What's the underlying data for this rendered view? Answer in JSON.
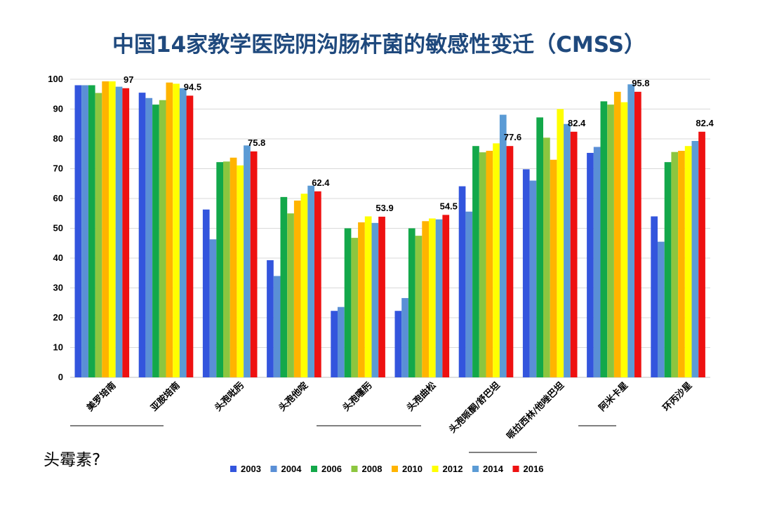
{
  "title": "中国14家教学医院阴沟肠杆菌的敏感性变迁（CMSS）",
  "note": "头霉素?",
  "chart_data": {
    "type": "bar",
    "title": "中国14家教学医院阴沟肠杆菌的敏感性变迁（CMSS）",
    "categories": [
      "美罗培南",
      "亚胺培南",
      "头孢吡肟",
      "头孢他啶",
      "头孢噻肟",
      "头孢曲松",
      "头孢哌酮/舒巴坦",
      "哌拉西林/他唑巴坦",
      "阿米卡星",
      "环丙沙星"
    ],
    "series": [
      {
        "name": "2003",
        "color": "#3355dd",
        "values": [
          98,
          95.5,
          56.3,
          39.3,
          22.3,
          22.3,
          64.1,
          69.8,
          75.3,
          54
        ]
      },
      {
        "name": "2004",
        "color": "#5a8fd6",
        "values": [
          98,
          93.7,
          46.3,
          34,
          23.6,
          26.6,
          55.6,
          66,
          77.3,
          45.5
        ]
      },
      {
        "name": "2006",
        "color": "#13a84a",
        "values": [
          98,
          91.5,
          72.2,
          60.5,
          50,
          50,
          77.6,
          87.2,
          92.6,
          72.2
        ]
      },
      {
        "name": "2008",
        "color": "#8cc63f",
        "values": [
          95.4,
          93,
          72.4,
          55,
          46.8,
          47.5,
          75.5,
          80.4,
          91.5,
          75.6
        ]
      },
      {
        "name": "2010",
        "color": "#ffb400",
        "values": [
          99.3,
          98.9,
          73.7,
          59.3,
          52,
          52.4,
          76,
          73,
          95.8,
          76
        ]
      },
      {
        "name": "2012",
        "color": "#ffff00",
        "values": [
          99.3,
          98.5,
          71.1,
          61.6,
          54,
          53.3,
          78.5,
          90,
          92.3,
          77.6
        ]
      },
      {
        "name": "2014",
        "color": "#5b9bd5",
        "values": [
          97.5,
          97,
          77.8,
          64.3,
          51.8,
          53,
          88.1,
          85,
          98.3,
          79.3
        ]
      },
      {
        "name": "2016",
        "color": "#ee1111",
        "values": [
          97,
          94.5,
          75.8,
          62.4,
          53.9,
          54.5,
          77.6,
          82.4,
          95.8,
          82.4
        ]
      }
    ],
    "data_labels": [
      "97",
      "94.5",
      "75.8",
      "62.4",
      "53.9",
      "54.5",
      "77.6",
      "82.4",
      "95.8",
      "82.4"
    ],
    "ylim": [
      0,
      100
    ],
    "yticks": [
      0,
      10,
      20,
      30,
      40,
      50,
      60,
      70,
      80,
      90,
      100
    ],
    "grid": true,
    "legend_position": "bottom",
    "xlabel": "",
    "ylabel": ""
  }
}
